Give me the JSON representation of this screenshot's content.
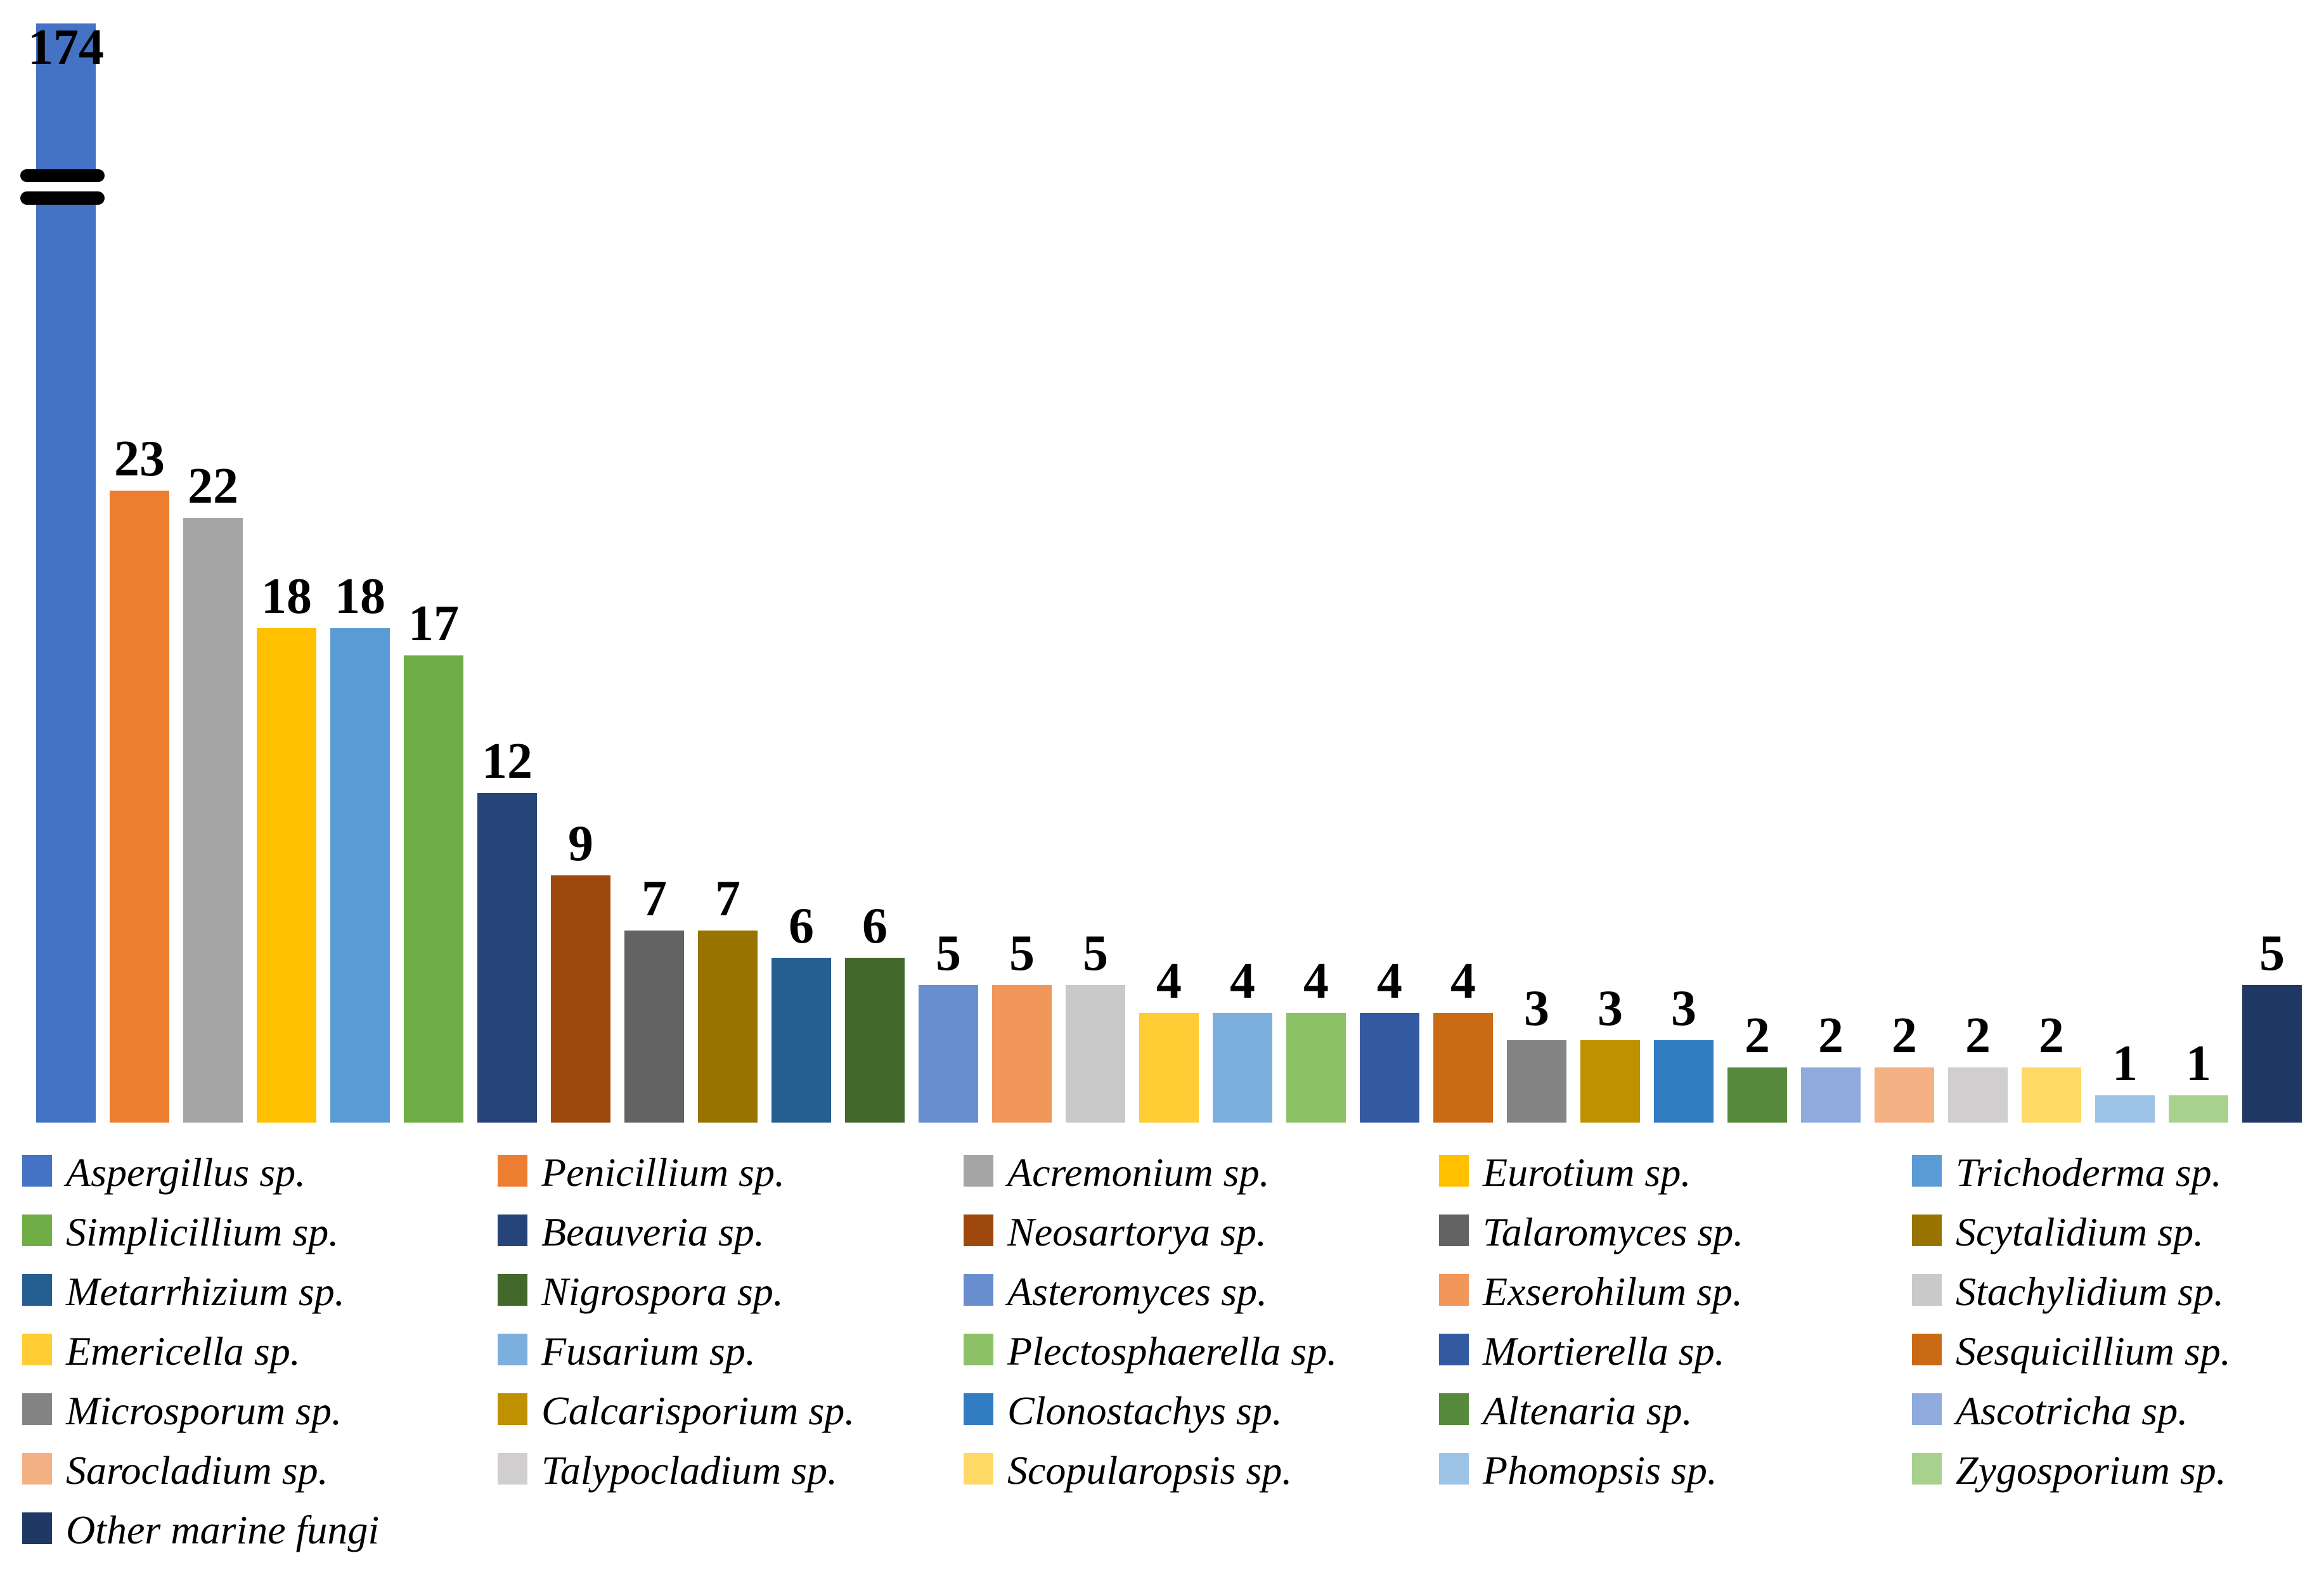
{
  "chart_data": {
    "type": "bar",
    "title": "",
    "xlabel": "",
    "ylabel": "",
    "grid": false,
    "legend_position": "bottom",
    "axis_break": {
      "category": "Aspergillus sp.",
      "style": "double black rounded bars across first column"
    },
    "categories": [
      "Aspergillus sp.",
      "Penicillium sp.",
      "Acremonium sp.",
      "Eurotium sp.",
      "Trichoderma sp.",
      "Simplicillium sp.",
      "Beauveria sp.",
      "Neosartorya sp.",
      "Talaromyces sp.",
      "Scytalidium sp.",
      "Metarrhizium sp.",
      "Nigrospora sp.",
      "Asteromyces sp.",
      "Exserohilum sp.",
      "Stachylidium sp.",
      "Emericella sp.",
      "Fusarium sp.",
      "Plectosphaerella sp.",
      "Mortierella sp.",
      "Sesquicillium sp.",
      "Microsporum sp.",
      "Calcarisporium sp.",
      "Clonostachys sp.",
      "Altenaria sp.",
      "Ascotricha sp.",
      "Sarocladium sp.",
      "Talypocladium sp.",
      "Scopularopsis sp.",
      "Phomopsis sp.",
      "Zygosporium sp.",
      "Other marine fungi"
    ],
    "values": [
      174,
      23,
      22,
      18,
      18,
      17,
      12,
      9,
      7,
      7,
      6,
      6,
      5,
      5,
      5,
      4,
      4,
      4,
      4,
      4,
      3,
      3,
      3,
      2,
      2,
      2,
      2,
      2,
      1,
      1,
      5
    ],
    "colors": [
      "#4472C4",
      "#ED7D31",
      "#A5A5A5",
      "#FFC000",
      "#5B9BD5",
      "#70AD47",
      "#264478",
      "#9E480E",
      "#636363",
      "#997300",
      "#255E91",
      "#43682B",
      "#698ED0",
      "#F1975A",
      "#C9C9C9",
      "#FFCD33",
      "#7CAFDD",
      "#8CC168",
      "#335AA1",
      "#CB6A15",
      "#848484",
      "#BF9000",
      "#327DC2",
      "#588A3E",
      "#8FAADC",
      "#F4B183",
      "#D0CECE",
      "#FFD966",
      "#9DC3E6",
      "#A9D18E",
      "#203864"
    ],
    "data_label_color": "#000000",
    "axis_break_color": "#000000"
  }
}
